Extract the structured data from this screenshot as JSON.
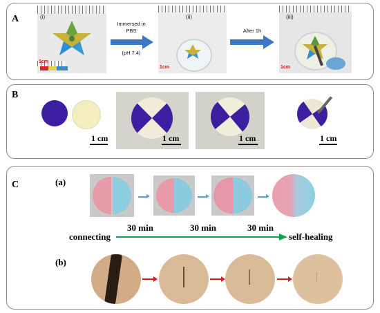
{
  "panel_a": {
    "label": "A",
    "sub_labels": [
      "(i)",
      "(ii)",
      "(iii)"
    ],
    "arrow1_caption": [
      "Immersed in",
      "PBS",
      "(pH 7.4)"
    ],
    "arrow2_caption": "After 1h",
    "scale_text": "1cm",
    "arrow_color": "#3f77c8"
  },
  "panel_b": {
    "label": "B",
    "scales": [
      "1 cm",
      "1 cm",
      "1 cm",
      "1 cm"
    ],
    "colors": {
      "purple": "#3b1fa0",
      "cream": "#f3eec0"
    }
  },
  "panel_c": {
    "label": "C",
    "row_a_label": "(a)",
    "row_b_label": "(b)",
    "connecting": "connecting",
    "self_healing": "self-healing",
    "times": [
      "30 min",
      "30 min",
      "30 min"
    ],
    "colors": {
      "pink": "#e79aa8",
      "blue": "#8dcde0",
      "green": "#18a04a",
      "skin": "#d7b592"
    }
  }
}
